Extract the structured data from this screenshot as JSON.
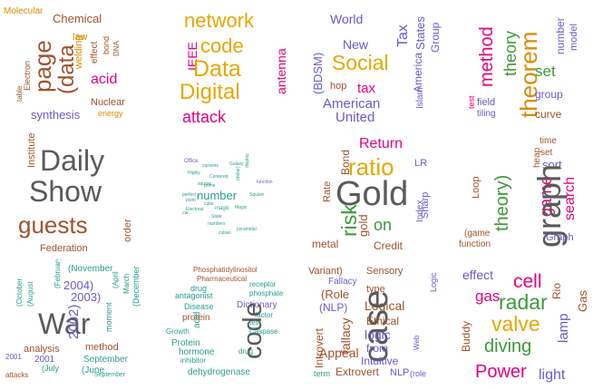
{
  "palette": {
    "olive": "#8b8000",
    "brown": "#a0522d",
    "orange": "#d98c00",
    "gold": "#e6a700",
    "magenta": "#e6007e",
    "purple": "#6a5acd",
    "green": "#3c9a3c",
    "teal": "#2a9d8f",
    "gray": "#5a5a5a",
    "dgray": "#666666",
    "redbrown": "#c0392b"
  },
  "clouds": [
    {
      "id": "chemistry",
      "words": [
        {
          "t": "Molecular",
          "c": "orange"
        },
        {
          "t": "Chemical",
          "c": "brown"
        },
        {
          "t": "page",
          "c": "brown"
        },
        {
          "t": "(data",
          "c": "brown"
        },
        {
          "t": "law",
          "c": "orange"
        },
        {
          "t": "welding",
          "c": "orange"
        },
        {
          "t": "effect",
          "c": "brown"
        },
        {
          "t": "bond",
          "c": "brown"
        },
        {
          "t": "DNA",
          "c": "brown"
        },
        {
          "t": "table",
          "c": "brown"
        },
        {
          "t": "Electron",
          "c": "brown"
        },
        {
          "t": "acid",
          "c": "magenta"
        },
        {
          "t": "Nuclear",
          "c": "brown"
        },
        {
          "t": "synthesis",
          "c": "purple"
        },
        {
          "t": "energy",
          "c": "orange"
        }
      ]
    },
    {
      "id": "computing",
      "words": [
        {
          "t": "network",
          "c": "gold"
        },
        {
          "t": "code",
          "c": "gold"
        },
        {
          "t": "IEEE",
          "c": "magenta"
        },
        {
          "t": "Data",
          "c": "gold"
        },
        {
          "t": "Digital",
          "c": "gold"
        },
        {
          "t": "antenna",
          "c": "magenta"
        },
        {
          "t": "attack",
          "c": "magenta"
        }
      ]
    },
    {
      "id": "society",
      "words": [
        {
          "t": "World",
          "c": "purple"
        },
        {
          "t": "Tax",
          "c": "purple"
        },
        {
          "t": "States",
          "c": "purple"
        },
        {
          "t": "Group",
          "c": "purple"
        },
        {
          "t": "New",
          "c": "purple"
        },
        {
          "t": "America",
          "c": "purple"
        },
        {
          "t": "(BDSM)",
          "c": "purple"
        },
        {
          "t": "Social",
          "c": "gold"
        },
        {
          "t": "hop",
          "c": "brown"
        },
        {
          "t": "tax",
          "c": "magenta"
        },
        {
          "t": "Islam",
          "c": "purple"
        },
        {
          "t": "American",
          "c": "purple"
        },
        {
          "t": "United",
          "c": "purple"
        }
      ]
    },
    {
      "id": "math",
      "words": [
        {
          "t": "method",
          "c": "magenta"
        },
        {
          "t": "theory",
          "c": "green"
        },
        {
          "t": "theorem",
          "c": "orange"
        },
        {
          "t": "number",
          "c": "purple"
        },
        {
          "t": "model",
          "c": "purple"
        },
        {
          "t": "set",
          "c": "green"
        },
        {
          "t": "group",
          "c": "purple"
        },
        {
          "t": "test",
          "c": "magenta"
        },
        {
          "t": "field",
          "c": "purple"
        },
        {
          "t": "tiling",
          "c": "purple"
        },
        {
          "t": "curve",
          "c": "brown"
        }
      ]
    },
    {
      "id": "tv",
      "words": [
        {
          "t": "Institute",
          "c": "brown"
        },
        {
          "t": "Daily",
          "c": "gray"
        },
        {
          "t": "Show",
          "c": "gray"
        },
        {
          "t": "guests",
          "c": "brown"
        },
        {
          "t": "order",
          "c": "brown"
        },
        {
          "t": "Federation",
          "c": "brown"
        }
      ]
    },
    {
      "id": "numbers",
      "words": [
        {
          "t": "Office",
          "c": "purple"
        },
        {
          "t": "currents",
          "c": "teal"
        },
        {
          "t": "display",
          "c": "teal"
        },
        {
          "t": "Galaxy",
          "c": "teal"
        },
        {
          "t": "Highly",
          "c": "teal"
        },
        {
          "t": "Centered",
          "c": "teal"
        },
        {
          "t": "(dollar)",
          "c": "teal"
        },
        {
          "t": "function",
          "c": "purple"
        },
        {
          "t": "square",
          "c": "teal"
        },
        {
          "t": "prime",
          "c": "teal"
        },
        {
          "t": "number",
          "c": "teal"
        },
        {
          "t": "perfect",
          "c": "teal"
        },
        {
          "t": "Square",
          "c": "teal"
        },
        {
          "t": "point",
          "c": "teal"
        },
        {
          "t": "cube",
          "c": "teal"
        },
        {
          "t": "magic",
          "c": "teal"
        },
        {
          "t": "Magic",
          "c": "teal"
        },
        {
          "t": "Electoral",
          "c": "teal"
        },
        {
          "t": "car",
          "c": "teal"
        },
        {
          "t": "State",
          "c": "teal"
        },
        {
          "t": "numbers",
          "c": "teal"
        },
        {
          "t": "pyramidal",
          "c": "teal"
        },
        {
          "t": "cuban",
          "c": "teal"
        }
      ]
    },
    {
      "id": "finance",
      "words": [
        {
          "t": "Return",
          "c": "magenta"
        },
        {
          "t": "Bond",
          "c": "brown"
        },
        {
          "t": "ratio",
          "c": "gold"
        },
        {
          "t": "LR",
          "c": "purple"
        },
        {
          "t": "Rate",
          "c": "brown"
        },
        {
          "t": "Gold",
          "c": "gray"
        },
        {
          "t": "Sharp",
          "c": "purple"
        },
        {
          "t": "risk",
          "c": "green"
        },
        {
          "t": "gold",
          "c": "brown"
        },
        {
          "t": "on",
          "c": "green"
        },
        {
          "t": "Index",
          "c": "purple"
        },
        {
          "t": "metal",
          "c": "brown"
        },
        {
          "t": "Credit",
          "c": "brown"
        }
      ]
    },
    {
      "id": "graph",
      "words": [
        {
          "t": "time",
          "c": "brown"
        },
        {
          "t": "set",
          "c": "brown"
        },
        {
          "t": "heap",
          "c": "brown"
        },
        {
          "t": "sort",
          "c": "purple"
        },
        {
          "t": "Loop",
          "c": "brown"
        },
        {
          "t": "theory)",
          "c": "green"
        },
        {
          "t": "game",
          "c": "magenta"
        },
        {
          "t": "search",
          "c": "magenta"
        },
        {
          "t": "graph",
          "c": "gray"
        },
        {
          "t": "(game",
          "c": "brown"
        },
        {
          "t": "function",
          "c": "brown"
        },
        {
          "t": "Graph",
          "c": "purple"
        }
      ]
    },
    {
      "id": "war",
      "words": [
        {
          "t": "(November",
          "c": "teal"
        },
        {
          "t": "2004)",
          "c": "purple"
        },
        {
          "t": "(February",
          "c": "teal"
        },
        {
          "t": "(April",
          "c": "teal"
        },
        {
          "t": "2003)",
          "c": "purple"
        },
        {
          "t": "March",
          "c": "teal"
        },
        {
          "t": "(October",
          "c": "teal"
        },
        {
          "t": "(August",
          "c": "teal"
        },
        {
          "t": "War",
          "c": "gray"
        },
        {
          "t": "(December",
          "c": "teal"
        },
        {
          "t": "2002)",
          "c": "purple"
        },
        {
          "t": "moment",
          "c": "teal"
        },
        {
          "t": "analysis",
          "c": "brown"
        },
        {
          "t": "method",
          "c": "brown"
        },
        {
          "t": "2001",
          "c": "purple"
        },
        {
          "t": "2001",
          "c": "purple"
        },
        {
          "t": "September",
          "c": "teal"
        },
        {
          "t": "(July",
          "c": "teal"
        },
        {
          "t": "(June",
          "c": "teal"
        },
        {
          "t": "attacks",
          "c": "brown"
        },
        {
          "t": "September",
          "c": "teal"
        }
      ]
    },
    {
      "id": "biochem",
      "words": [
        {
          "t": "Phosphatidylinositol",
          "c": "brown"
        },
        {
          "t": "Pharmaceutical",
          "c": "brown"
        },
        {
          "t": "drug",
          "c": "teal"
        },
        {
          "t": "receptor",
          "c": "teal"
        },
        {
          "t": "antagonist",
          "c": "teal"
        },
        {
          "t": "phosphate",
          "c": "teal"
        },
        {
          "t": "Disease",
          "c": "teal"
        },
        {
          "t": "Dictionary",
          "c": "purple"
        },
        {
          "t": "factor",
          "c": "teal"
        },
        {
          "t": "protein",
          "c": "brown"
        },
        {
          "t": "test",
          "c": "teal"
        },
        {
          "t": "code",
          "c": "gray"
        },
        {
          "t": "Caspase",
          "c": "teal"
        },
        {
          "t": "Growth",
          "c": "teal"
        },
        {
          "t": "acid",
          "c": "teal"
        },
        {
          "t": "Protein",
          "c": "teal"
        },
        {
          "t": "hormone",
          "c": "teal"
        },
        {
          "t": "inhibitor",
          "c": "teal"
        },
        {
          "t": "drug",
          "c": "teal"
        },
        {
          "t": "dehydrogenase",
          "c": "teal"
        }
      ]
    },
    {
      "id": "personality",
      "words": [
        {
          "t": "Variant)",
          "c": "brown"
        },
        {
          "t": "Sensory",
          "c": "brown"
        },
        {
          "t": "Logic",
          "c": "purple"
        },
        {
          "t": "Fallacy",
          "c": "purple"
        },
        {
          "t": "type",
          "c": "brown"
        },
        {
          "t": "(Role",
          "c": "brown"
        },
        {
          "t": "Logical",
          "c": "brown"
        },
        {
          "t": "(NLP)",
          "c": "purple"
        },
        {
          "t": "case",
          "c": "gray"
        },
        {
          "t": "Ethical",
          "c": "brown"
        },
        {
          "t": "Introvert",
          "c": "brown"
        },
        {
          "t": "Appeal",
          "c": "brown"
        },
        {
          "t": "fallacy",
          "c": "brown"
        },
        {
          "t": "logic",
          "c": "purple"
        },
        {
          "t": "from",
          "c": "purple"
        },
        {
          "t": "Web",
          "c": "purple"
        },
        {
          "t": "Intuitive",
          "c": "purple"
        },
        {
          "t": "term",
          "c": "teal"
        },
        {
          "t": "Extrovert",
          "c": "brown"
        },
        {
          "t": "NLP",
          "c": "purple"
        },
        {
          "t": "(role",
          "c": "purple"
        }
      ]
    },
    {
      "id": "physics",
      "words": [
        {
          "t": "effect",
          "c": "purple"
        },
        {
          "t": "cell",
          "c": "magenta"
        },
        {
          "t": "Rio",
          "c": "brown"
        },
        {
          "t": "gas",
          "c": "magenta"
        },
        {
          "t": "radar",
          "c": "green"
        },
        {
          "t": "Gas",
          "c": "brown"
        },
        {
          "t": "valve",
          "c": "gold"
        },
        {
          "t": "lamp",
          "c": "purple"
        },
        {
          "t": "Buddy",
          "c": "brown"
        },
        {
          "t": "diving",
          "c": "green"
        },
        {
          "t": "Power",
          "c": "magenta"
        },
        {
          "t": "light",
          "c": "purple"
        }
      ]
    }
  ]
}
